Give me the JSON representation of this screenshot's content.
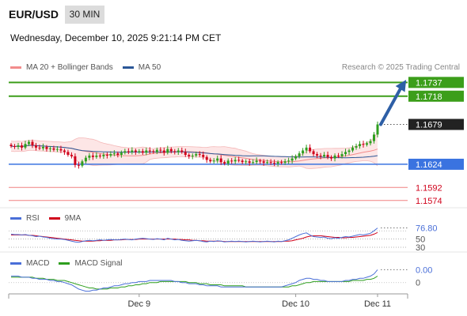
{
  "header": {
    "symbol": "EUR/USD",
    "timeframe": "30 MIN",
    "datetime": "Wednesday, December 10, 2025 9:21:14 PM CET"
  },
  "legend": {
    "main": [
      {
        "label": "MA 20 + Bollinger Bands",
        "color": "#f28c8c"
      },
      {
        "label": "MA 50",
        "color": "#2b5797"
      }
    ],
    "rsi": [
      {
        "label": "RSI",
        "color": "#4a6fd8"
      },
      {
        "label": "9MA",
        "color": "#d0021b"
      }
    ],
    "macd": [
      {
        "label": "MACD",
        "color": "#4a6fd8"
      },
      {
        "label": "MACD Signal",
        "color": "#2e9e1e"
      }
    ]
  },
  "research_note": "Research © 2025 Trading Central",
  "colors": {
    "up": "#2e9e1e",
    "down": "#d0021b",
    "resistance": "#3c9e1a",
    "support": "#3a73e0",
    "target_line": "#f08080",
    "arrow": "#2e5fa6",
    "band_fill": "#fde3e3"
  },
  "chart_data": {
    "type": "candlestick",
    "x_ticks": [
      "Dec 9",
      "Dec 10",
      "Dec 11"
    ],
    "price_ylim": [
      1.1565,
      1.1745
    ],
    "levels": [
      {
        "value": 1.1737,
        "label": "1.1737",
        "kind": "resistance"
      },
      {
        "value": 1.1718,
        "label": "1.1718",
        "kind": "resistance"
      },
      {
        "value": 1.1679,
        "label": "1.1679",
        "kind": "current"
      },
      {
        "value": 1.1624,
        "label": "1.1624",
        "kind": "support"
      },
      {
        "value": 1.1592,
        "label": "1.1592",
        "kind": "target"
      },
      {
        "value": 1.1574,
        "label": "1.1574",
        "kind": "target"
      }
    ],
    "close": [
      1.1649,
      1.1648,
      1.165,
      1.1647,
      1.1652,
      1.1655,
      1.165,
      1.1647,
      1.1646,
      1.1648,
      1.1645,
      1.1646,
      1.1644,
      1.1645,
      1.1643,
      1.1641,
      1.1637,
      1.1635,
      1.1623,
      1.1622,
      1.1628,
      1.1633,
      1.1636,
      1.1634,
      1.1636,
      1.1635,
      1.1637,
      1.1636,
      1.1638,
      1.1639,
      1.1637,
      1.164,
      1.1642,
      1.1641,
      1.1643,
      1.1641,
      1.1642,
      1.164,
      1.1643,
      1.1642,
      1.1641,
      1.1644,
      1.1643,
      1.164,
      1.1645,
      1.1642,
      1.1641,
      1.1643,
      1.1641,
      1.1637,
      1.1635,
      1.1636,
      1.1638,
      1.1637,
      1.1634,
      1.163,
      1.1628,
      1.1629,
      1.1632,
      1.1627,
      1.1625,
      1.1629,
      1.1628,
      1.163,
      1.1629,
      1.1627,
      1.1628,
      1.1626,
      1.1627,
      1.1629,
      1.1628,
      1.1626,
      1.1627,
      1.1626,
      1.1625,
      1.1627,
      1.1626,
      1.1628,
      1.1629,
      1.1632,
      1.1635,
      1.1639,
      1.1643,
      1.1647,
      1.1642,
      1.1638,
      1.1636,
      1.1635,
      1.1637,
      1.1634,
      1.1632,
      1.1636,
      1.1635,
      1.1638,
      1.1641,
      1.1643,
      1.1647,
      1.1649,
      1.1652,
      1.1651,
      1.1653,
      1.1656,
      1.1665,
      1.1679
    ],
    "macd_label": "0.00",
    "rsi_label": "76.80",
    "rsi_levels": [
      70,
      50,
      30
    ],
    "rsi_level_labels": [
      "",
      "50",
      "30"
    ],
    "rsi": [
      62,
      61,
      61,
      60,
      61,
      59,
      58,
      56,
      57,
      55,
      54,
      52,
      51,
      50,
      50,
      49,
      47,
      45,
      43,
      42,
      44,
      46,
      47,
      46,
      47,
      48,
      47,
      48,
      49,
      48,
      48,
      49,
      50,
      49,
      48,
      50,
      51,
      52,
      51,
      50,
      49,
      51,
      50,
      48,
      52,
      50,
      48,
      49,
      47,
      46,
      45,
      46,
      47,
      46,
      44,
      43,
      45,
      44,
      46,
      45,
      43,
      44,
      45,
      44,
      45,
      44,
      43,
      44,
      45,
      44,
      43,
      44,
      45,
      44,
      43,
      45,
      44,
      46,
      48,
      52,
      56,
      60,
      63,
      65,
      60,
      56,
      55,
      54,
      55,
      52,
      51,
      53,
      52,
      54,
      56,
      55,
      57,
      59,
      61,
      60,
      62,
      64,
      70,
      77
    ],
    "rsi_ma": [
      60,
      60,
      60,
      60,
      60,
      59,
      59,
      58,
      57,
      56,
      55,
      54,
      53,
      52,
      51,
      50,
      49,
      48,
      47,
      46,
      45,
      45,
      45,
      45,
      46,
      46,
      47,
      47,
      47,
      48,
      48,
      48,
      49,
      49,
      49,
      49,
      50,
      50,
      50,
      50,
      50,
      50,
      50,
      50,
      50,
      50,
      50,
      49,
      49,
      48,
      48,
      47,
      47,
      46,
      46,
      45,
      45,
      45,
      45,
      45,
      44,
      44,
      44,
      44,
      44,
      44,
      44,
      44,
      44,
      44,
      44,
      44,
      44,
      44,
      44,
      44,
      44,
      45,
      45,
      46,
      48,
      50,
      52,
      55,
      57,
      58,
      58,
      58,
      57,
      56,
      55,
      54,
      54,
      53,
      53,
      54,
      54,
      55,
      56,
      57,
      58,
      59,
      62,
      66
    ],
    "macd": [
      0.0006,
      0.0006,
      0.0006,
      0.0005,
      0.0005,
      0.0005,
      0.0004,
      0.0004,
      0.0003,
      0.0003,
      0.0003,
      0.0002,
      0.0002,
      0.0001,
      0.0001,
      0,
      -0.0001,
      -0.0002,
      -0.0004,
      -0.0006,
      -0.0007,
      -0.0008,
      -0.0008,
      -0.0007,
      -0.0007,
      -0.0006,
      -0.0005,
      -0.0005,
      -0.0004,
      -0.0003,
      -0.0003,
      -0.0002,
      -0.0001,
      -0.0001,
      0,
      0,
      0.0001,
      0.0001,
      0.0001,
      0.0002,
      0.0002,
      0.0002,
      0.0002,
      0.0002,
      0.0002,
      0.0002,
      0.0001,
      0.0001,
      0,
      0,
      -0.0001,
      -0.0001,
      -0.0001,
      -0.0002,
      -0.0002,
      -0.0003,
      -0.0003,
      -0.0003,
      -0.0003,
      -0.0004,
      -0.0004,
      -0.0004,
      -0.0004,
      -0.0004,
      -0.0004,
      -0.0004,
      -0.0004,
      -0.0004,
      -0.0004,
      -0.0004,
      -0.0004,
      -0.0004,
      -0.0004,
      -0.0004,
      -0.0004,
      -0.0004,
      -0.0004,
      -0.0003,
      -0.0002,
      -0.0001,
      0,
      0.0002,
      0.0003,
      0.0004,
      0.0004,
      0.0003,
      0.0003,
      0.0002,
      0.0002,
      0.0001,
      0.0001,
      0.0001,
      0.0001,
      0.0001,
      0.0002,
      0.0002,
      0.0003,
      0.0003,
      0.0004,
      0.0004,
      0.0005,
      0.0006,
      0.0008,
      0.0012
    ],
    "macd_signal": [
      0.0005,
      0.0005,
      0.0005,
      0.0005,
      0.0005,
      0.0005,
      0.0005,
      0.0004,
      0.0004,
      0.0004,
      0.0003,
      0.0003,
      0.0003,
      0.0002,
      0.0002,
      0.0002,
      0.0001,
      0,
      -0.0001,
      -0.0002,
      -0.0003,
      -0.0004,
      -0.0005,
      -0.0005,
      -0.0006,
      -0.0006,
      -0.0006,
      -0.0006,
      -0.0005,
      -0.0005,
      -0.0005,
      -0.0004,
      -0.0004,
      -0.0003,
      -0.0003,
      -0.0002,
      -0.0002,
      -0.0001,
      -0.0001,
      0,
      0,
      0,
      0.0001,
      0.0001,
      0.0001,
      0.0001,
      0.0001,
      0.0001,
      0.0001,
      0.0001,
      0,
      0,
      0,
      -0.0001,
      -0.0001,
      -0.0001,
      -0.0002,
      -0.0002,
      -0.0002,
      -0.0002,
      -0.0003,
      -0.0003,
      -0.0003,
      -0.0003,
      -0.0003,
      -0.0003,
      -0.0004,
      -0.0004,
      -0.0004,
      -0.0004,
      -0.0004,
      -0.0004,
      -0.0004,
      -0.0004,
      -0.0004,
      -0.0004,
      -0.0004,
      -0.0004,
      -0.0004,
      -0.0003,
      -0.0003,
      -0.0002,
      -0.0001,
      0,
      0,
      0.0001,
      0.0001,
      0.0001,
      0.0001,
      0.0001,
      0.0001,
      0.0001,
      0.0001,
      0.0001,
      0.0001,
      0.0001,
      0.0002,
      0.0002,
      0.0002,
      0.0002,
      0.0003,
      0.0003,
      0.0004,
      0.0006
    ]
  }
}
